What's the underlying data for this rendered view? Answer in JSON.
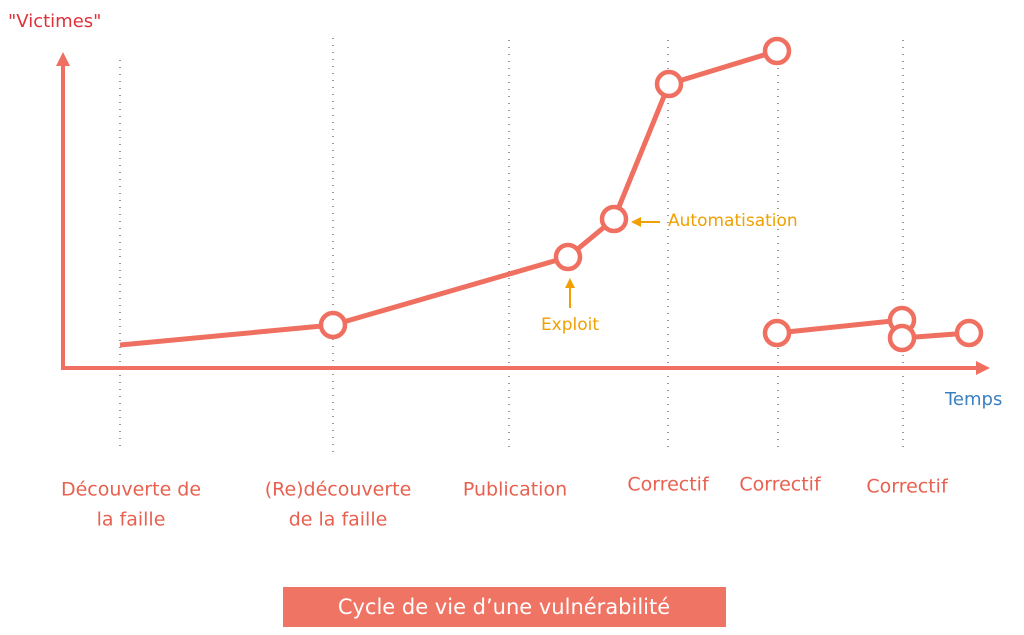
{
  "y_axis_label": "\"Victimes\"",
  "x_axis_label": "Temps",
  "stages": [
    {
      "lines": [
        "Découverte de",
        "la faille"
      ]
    },
    {
      "lines": [
        "(Re)découverte",
        "de la faille"
      ]
    },
    {
      "lines": [
        "Publication"
      ]
    },
    {
      "lines": [
        "Correctif"
      ]
    },
    {
      "lines": [
        "Correctif"
      ]
    },
    {
      "lines": [
        "Correctif"
      ]
    }
  ],
  "annotations": {
    "exploit": "Exploit",
    "automation": "Automatisation"
  },
  "caption": "Cycle de vie d’une vulnérabilité"
}
